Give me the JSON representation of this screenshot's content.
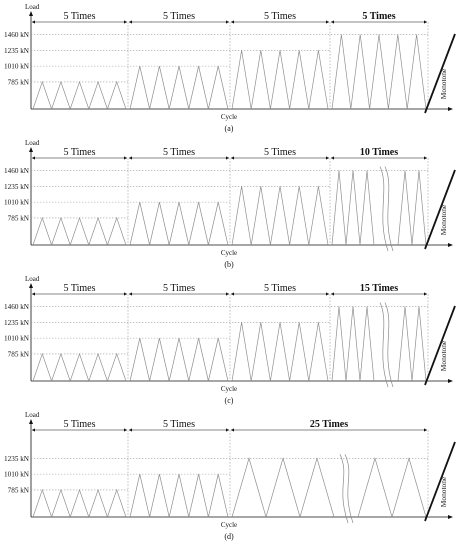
{
  "y_axis_label": "Load",
  "x_axis_label": "Cycle",
  "monotone_label": "Monotone",
  "panels": [
    {
      "tag": "(a)",
      "levels_kN": [
        785,
        1010,
        1235,
        1460
      ],
      "level_labels": [
        "785 kN",
        "1010 kN",
        "1235 kN",
        "1460 kN"
      ],
      "block_labels": [
        "5 Times",
        "5 Times",
        "5 Times",
        "5 Times"
      ],
      "block_bold": [
        false,
        false,
        false,
        true
      ],
      "cycles_per_block": [
        5,
        5,
        5,
        5
      ],
      "break_symbol": false
    },
    {
      "tag": "(b)",
      "levels_kN": [
        785,
        1010,
        1235,
        1460
      ],
      "level_labels": [
        "785 kN",
        "1010 kN",
        "1235 kN",
        "1460 kN"
      ],
      "block_labels": [
        "5 Times",
        "5 Times",
        "5 Times",
        "10 Times"
      ],
      "block_bold": [
        false,
        false,
        false,
        true
      ],
      "cycles_per_block": [
        5,
        5,
        5,
        10
      ],
      "break_symbol": true
    },
    {
      "tag": "(c)",
      "levels_kN": [
        785,
        1010,
        1235,
        1460
      ],
      "level_labels": [
        "785 kN",
        "1010 kN",
        "1235 kN",
        "1460 kN"
      ],
      "block_labels": [
        "5 Times",
        "5 Times",
        "5 Times",
        "15 Times"
      ],
      "block_bold": [
        false,
        false,
        false,
        true
      ],
      "cycles_per_block": [
        5,
        5,
        5,
        15
      ],
      "break_symbol": true
    },
    {
      "tag": "(d)",
      "levels_kN": [
        785,
        1010,
        1235
      ],
      "level_labels": [
        "785 kN",
        "1010 kN",
        "1235 kN"
      ],
      "block_labels": [
        "5 Times",
        "5 Times",
        "25 Times"
      ],
      "block_bold": [
        false,
        false,
        true
      ],
      "cycles_per_block": [
        5,
        5,
        25
      ],
      "break_symbol": true
    }
  ]
}
